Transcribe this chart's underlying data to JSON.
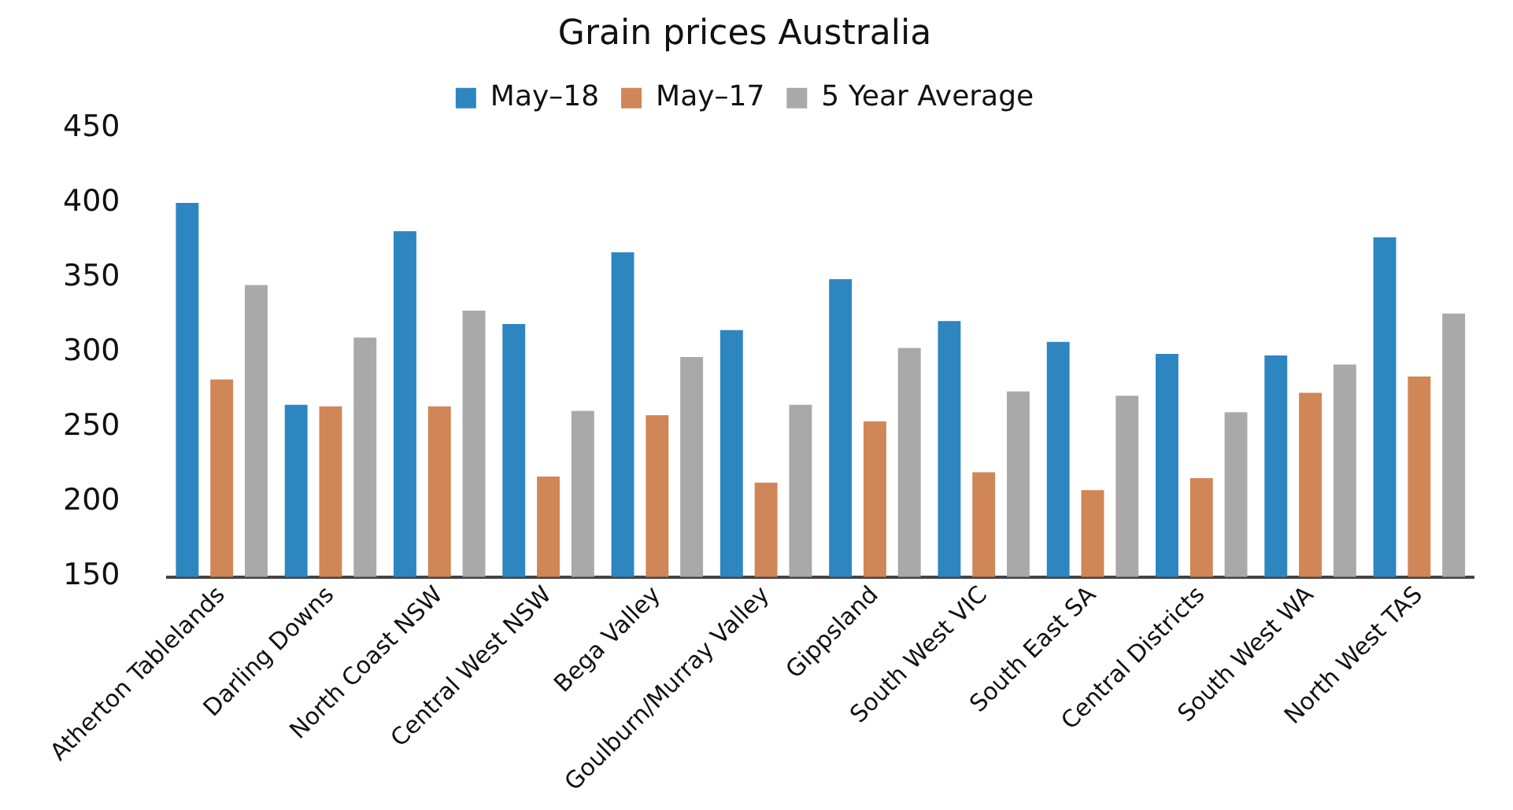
{
  "chart_data": {
    "type": "bar",
    "title": "Grain prices Australia",
    "categories": [
      "Atherton Tablelands",
      "Darling Downs",
      "North Coast NSW",
      "Central West NSW",
      "Bega Valley",
      "Goulburn/Murray Valley",
      "Gippsland",
      "South West VIC",
      "South East SA",
      "Central Districts",
      "South West WA",
      "North West TAS"
    ],
    "series": [
      {
        "name": "May–18",
        "color": "#2e86c1",
        "values": [
          400,
          265,
          381,
          319,
          367,
          315,
          349,
          321,
          307,
          299,
          298,
          377
        ]
      },
      {
        "name": "May–17",
        "color": "#d08656",
        "values": [
          282,
          264,
          264,
          217,
          258,
          213,
          254,
          220,
          208,
          216,
          273,
          284
        ]
      },
      {
        "name": "5 Year Average",
        "color": "#a9a9a9",
        "values": [
          345,
          310,
          328,
          261,
          297,
          265,
          303,
          274,
          271,
          260,
          292,
          326
        ]
      }
    ],
    "ylim": [
      150,
      450
    ],
    "yticks": [
      150,
      200,
      250,
      300,
      350,
      400,
      450
    ],
    "grid": false,
    "legend": "top"
  }
}
